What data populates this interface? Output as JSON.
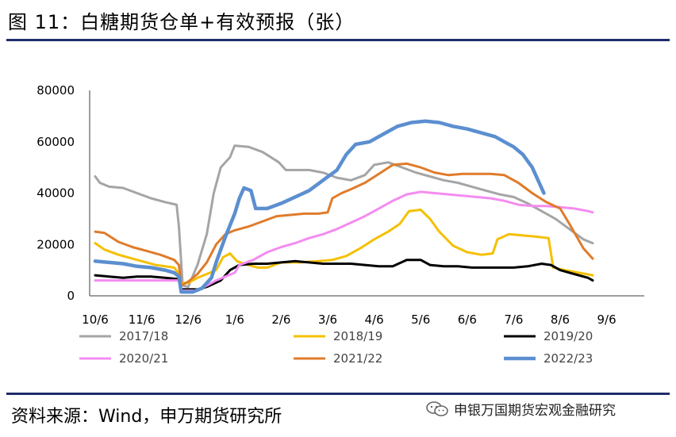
{
  "header": {
    "title": "图 11：白糖期货仓单+有效预报（张）"
  },
  "footer": {
    "source": "资料来源：Wind，申万期货研究所",
    "watermark": "申银万国期货宏观金融研究"
  },
  "chart_data": {
    "type": "line",
    "title": "",
    "xlabel": "",
    "ylabel": "",
    "ylim": [
      0,
      80000
    ],
    "yticks": [
      "0",
      "20000",
      "40000",
      "60000",
      "80000"
    ],
    "xlim": [
      0,
      12
    ],
    "xticks": [
      "10/6",
      "11/6",
      "12/6",
      "1/6",
      "2/6",
      "3/6",
      "4/6",
      "5/6",
      "6/6",
      "7/6",
      "8/6",
      "9/6"
    ],
    "grid": false,
    "legend_position": "bottom",
    "series": [
      {
        "name": "2017/18",
        "color": "#a5a5a5",
        "points": [
          [
            0,
            46500
          ],
          [
            0.1,
            44000
          ],
          [
            0.3,
            42500
          ],
          [
            0.6,
            42000
          ],
          [
            0.9,
            40000
          ],
          [
            1.2,
            38000
          ],
          [
            1.5,
            36500
          ],
          [
            1.75,
            35500
          ],
          [
            1.8,
            27000
          ],
          [
            1.88,
            4000
          ],
          [
            2.0,
            3500
          ],
          [
            2.2,
            12000
          ],
          [
            2.4,
            24000
          ],
          [
            2.55,
            40000
          ],
          [
            2.7,
            50000
          ],
          [
            2.9,
            54000
          ],
          [
            3.0,
            58500
          ],
          [
            3.3,
            58000
          ],
          [
            3.6,
            56000
          ],
          [
            3.95,
            52000
          ],
          [
            4.1,
            49000
          ],
          [
            4.6,
            49000
          ],
          [
            4.9,
            48000
          ],
          [
            5.2,
            46000
          ],
          [
            5.5,
            45000
          ],
          [
            5.8,
            47000
          ],
          [
            6.0,
            51000
          ],
          [
            6.3,
            52000
          ],
          [
            6.6,
            50000
          ],
          [
            6.9,
            48000
          ],
          [
            7.2,
            46500
          ],
          [
            7.5,
            45000
          ],
          [
            7.8,
            44000
          ],
          [
            8.1,
            42500
          ],
          [
            8.4,
            41000
          ],
          [
            8.7,
            39500
          ],
          [
            9.0,
            38500
          ],
          [
            9.3,
            36000
          ],
          [
            9.6,
            33000
          ],
          [
            9.9,
            30000
          ],
          [
            10.2,
            26000
          ],
          [
            10.5,
            22000
          ],
          [
            10.7,
            20500
          ]
        ]
      },
      {
        "name": "2018/19",
        "color": "#f5c000",
        "points": [
          [
            0,
            20500
          ],
          [
            0.2,
            18000
          ],
          [
            0.5,
            16000
          ],
          [
            0.9,
            14000
          ],
          [
            1.3,
            12000
          ],
          [
            1.7,
            11000
          ],
          [
            1.78,
            9000
          ],
          [
            1.85,
            5000
          ],
          [
            2.0,
            5000
          ],
          [
            2.2,
            7000
          ],
          [
            2.4,
            8500
          ],
          [
            2.6,
            10000
          ],
          [
            2.75,
            15000
          ],
          [
            2.9,
            16500
          ],
          [
            3.05,
            13500
          ],
          [
            3.2,
            12500
          ],
          [
            3.5,
            11000
          ],
          [
            3.7,
            11000
          ],
          [
            4.0,
            13000
          ],
          [
            4.4,
            13000
          ],
          [
            4.8,
            13500
          ],
          [
            5.1,
            14000
          ],
          [
            5.4,
            15500
          ],
          [
            5.7,
            18500
          ],
          [
            6.0,
            22000
          ],
          [
            6.3,
            25000
          ],
          [
            6.55,
            28000
          ],
          [
            6.75,
            33000
          ],
          [
            7.0,
            33500
          ],
          [
            7.2,
            30000
          ],
          [
            7.4,
            25000
          ],
          [
            7.7,
            19500
          ],
          [
            8.0,
            17000
          ],
          [
            8.3,
            16000
          ],
          [
            8.55,
            16500
          ],
          [
            8.65,
            22000
          ],
          [
            8.9,
            24000
          ],
          [
            9.2,
            23500
          ],
          [
            9.5,
            23000
          ],
          [
            9.75,
            22500
          ],
          [
            9.85,
            11000
          ],
          [
            10.1,
            10000
          ],
          [
            10.4,
            9000
          ],
          [
            10.7,
            8000
          ]
        ]
      },
      {
        "name": "2019/20",
        "color": "#000000",
        "points": [
          [
            0,
            8000
          ],
          [
            0.3,
            7500
          ],
          [
            0.6,
            7000
          ],
          [
            0.9,
            7500
          ],
          [
            1.2,
            7500
          ],
          [
            1.5,
            7000
          ],
          [
            1.8,
            6500
          ],
          [
            1.85,
            2500
          ],
          [
            2.2,
            2500
          ],
          [
            2.4,
            3500
          ],
          [
            2.7,
            6000
          ],
          [
            2.9,
            10000
          ],
          [
            3.1,
            12000
          ],
          [
            3.4,
            12500
          ],
          [
            3.7,
            12500
          ],
          [
            4.0,
            13000
          ],
          [
            4.3,
            13500
          ],
          [
            4.6,
            13000
          ],
          [
            4.9,
            12500
          ],
          [
            5.2,
            12500
          ],
          [
            5.5,
            12500
          ],
          [
            5.8,
            12000
          ],
          [
            6.1,
            11500
          ],
          [
            6.4,
            11500
          ],
          [
            6.7,
            14000
          ],
          [
            7.0,
            14000
          ],
          [
            7.2,
            12000
          ],
          [
            7.5,
            11500
          ],
          [
            7.8,
            11500
          ],
          [
            8.1,
            11000
          ],
          [
            8.4,
            11000
          ],
          [
            8.7,
            11000
          ],
          [
            9.0,
            11000
          ],
          [
            9.3,
            11500
          ],
          [
            9.6,
            12500
          ],
          [
            9.8,
            12000
          ],
          [
            10.0,
            10000
          ],
          [
            10.3,
            8500
          ],
          [
            10.6,
            7000
          ],
          [
            10.7,
            6000
          ]
        ]
      },
      {
        "name": "2020/21",
        "color": "#f48cf0",
        "points": [
          [
            0,
            6000
          ],
          [
            0.4,
            6000
          ],
          [
            0.8,
            6000
          ],
          [
            1.2,
            6000
          ],
          [
            1.6,
            6000
          ],
          [
            1.8,
            6000
          ],
          [
            1.85,
            2000
          ],
          [
            2.2,
            2000
          ],
          [
            2.4,
            4000
          ],
          [
            2.6,
            6000
          ],
          [
            2.8,
            7500
          ],
          [
            3.0,
            9000
          ],
          [
            3.1,
            12000
          ],
          [
            3.4,
            14000
          ],
          [
            3.7,
            17000
          ],
          [
            4.0,
            19000
          ],
          [
            4.3,
            20500
          ],
          [
            4.6,
            22500
          ],
          [
            4.9,
            24000
          ],
          [
            5.2,
            26000
          ],
          [
            5.5,
            28500
          ],
          [
            5.8,
            31000
          ],
          [
            6.1,
            34000
          ],
          [
            6.4,
            37000
          ],
          [
            6.7,
            39500
          ],
          [
            7.0,
            40500
          ],
          [
            7.3,
            40000
          ],
          [
            7.6,
            39500
          ],
          [
            7.9,
            39000
          ],
          [
            8.2,
            38500
          ],
          [
            8.5,
            38000
          ],
          [
            8.8,
            37000
          ],
          [
            9.1,
            35500
          ],
          [
            9.4,
            35000
          ],
          [
            9.7,
            35000
          ],
          [
            10.0,
            34500
          ],
          [
            10.3,
            34000
          ],
          [
            10.6,
            33000
          ],
          [
            10.7,
            32500
          ]
        ]
      },
      {
        "name": "2021/22",
        "color": "#e07b2a",
        "points": [
          [
            0,
            25000
          ],
          [
            0.2,
            24500
          ],
          [
            0.5,
            21000
          ],
          [
            0.8,
            19000
          ],
          [
            1.1,
            17500
          ],
          [
            1.4,
            16000
          ],
          [
            1.7,
            14000
          ],
          [
            1.8,
            12000
          ],
          [
            1.85,
            4000
          ],
          [
            2.0,
            5500
          ],
          [
            2.2,
            8500
          ],
          [
            2.4,
            13000
          ],
          [
            2.6,
            20000
          ],
          [
            2.8,
            24000
          ],
          [
            3.0,
            25500
          ],
          [
            3.3,
            27000
          ],
          [
            3.6,
            29000
          ],
          [
            3.9,
            31000
          ],
          [
            4.2,
            31500
          ],
          [
            4.5,
            32000
          ],
          [
            4.8,
            32000
          ],
          [
            5.0,
            32500
          ],
          [
            5.1,
            38000
          ],
          [
            5.3,
            40000
          ],
          [
            5.5,
            41500
          ],
          [
            5.8,
            44000
          ],
          [
            6.1,
            47500
          ],
          [
            6.4,
            51000
          ],
          [
            6.7,
            51500
          ],
          [
            7.0,
            50000
          ],
          [
            7.3,
            48000
          ],
          [
            7.6,
            47000
          ],
          [
            7.9,
            47500
          ],
          [
            8.2,
            47500
          ],
          [
            8.5,
            47500
          ],
          [
            8.8,
            47000
          ],
          [
            9.1,
            44000
          ],
          [
            9.4,
            40000
          ],
          [
            9.7,
            36500
          ],
          [
            10.0,
            34000
          ],
          [
            10.2,
            28000
          ],
          [
            10.5,
            18500
          ],
          [
            10.7,
            14500
          ]
        ]
      },
      {
        "name": "2022/23",
        "color": "#5b8fd0",
        "points": [
          [
            0,
            13500
          ],
          [
            0.3,
            13000
          ],
          [
            0.6,
            12500
          ],
          [
            0.9,
            11500
          ],
          [
            1.2,
            11000
          ],
          [
            1.5,
            10000
          ],
          [
            1.7,
            9000
          ],
          [
            1.8,
            7500
          ],
          [
            1.85,
            1500
          ],
          [
            2.1,
            1500
          ],
          [
            2.3,
            3000
          ],
          [
            2.5,
            7000
          ],
          [
            2.6,
            13000
          ],
          [
            2.8,
            23000
          ],
          [
            3.0,
            32000
          ],
          [
            3.1,
            38000
          ],
          [
            3.2,
            42000
          ],
          [
            3.35,
            41000
          ],
          [
            3.45,
            34000
          ],
          [
            3.7,
            34000
          ],
          [
            4.0,
            36000
          ],
          [
            4.3,
            38500
          ],
          [
            4.6,
            41000
          ],
          [
            4.9,
            45000
          ],
          [
            5.2,
            49000
          ],
          [
            5.4,
            55000
          ],
          [
            5.6,
            59000
          ],
          [
            5.9,
            60000
          ],
          [
            6.2,
            63000
          ],
          [
            6.5,
            66000
          ],
          [
            6.8,
            67500
          ],
          [
            7.1,
            68000
          ],
          [
            7.4,
            67500
          ],
          [
            7.7,
            66000
          ],
          [
            8.0,
            65000
          ],
          [
            8.3,
            63500
          ],
          [
            8.6,
            62000
          ],
          [
            8.8,
            60000
          ],
          [
            9.0,
            58000
          ],
          [
            9.2,
            55000
          ],
          [
            9.4,
            50000
          ],
          [
            9.55,
            44000
          ],
          [
            9.65,
            40000
          ]
        ]
      }
    ]
  }
}
